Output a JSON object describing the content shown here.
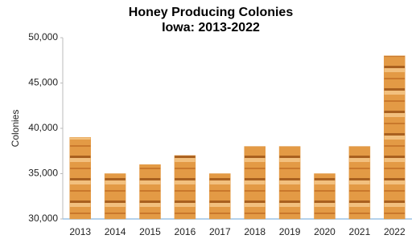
{
  "chart_data": {
    "type": "bar",
    "title": "Honey Producing Colonies",
    "subtitle": "Iowa: 2013-2022",
    "y_label": "Colonies",
    "categories": [
      "2013",
      "2014",
      "2015",
      "2016",
      "2017",
      "2018",
      "2019",
      "2020",
      "2021",
      "2022"
    ],
    "values": [
      39000,
      35000,
      36000,
      37000,
      35000,
      38000,
      38000,
      35000,
      38000,
      48000
    ],
    "color": "#e39a45",
    "ylim": [
      30000,
      50000
    ],
    "yticks": [
      {
        "value": 30000,
        "label": "30,000"
      },
      {
        "value": 35000,
        "label": "35,000"
      },
      {
        "value": 40000,
        "label": "40,000"
      },
      {
        "value": 45000,
        "label": "45,000"
      },
      {
        "value": 50000,
        "label": "50,000"
      }
    ],
    "grid": false
  }
}
